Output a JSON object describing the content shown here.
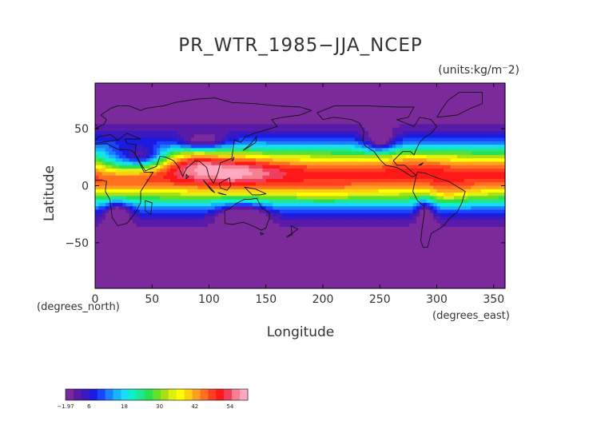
{
  "title": "PR_WTR_1985−JJA_NCEP",
  "units": "(units:kg/m⁻2)",
  "axes": {
    "xlabel": "Longitude",
    "ylabel": "Latitude",
    "x_note": "(degrees_east)",
    "y_note": "(degrees_north)",
    "xticks": [
      "0",
      "50",
      "100",
      "150",
      "200",
      "250",
      "300",
      "350"
    ],
    "yticks": [
      "50",
      "0",
      "−50"
    ]
  },
  "colorbar": {
    "labels": [
      "−1.97",
      "6",
      "18",
      "30",
      "42",
      "54"
    ],
    "colors": [
      "#7a2a9a",
      "#5a1aa8",
      "#3a1ac0",
      "#1a1ae0",
      "#1a44ff",
      "#1a80ff",
      "#18b4ff",
      "#18ddf8",
      "#10f0c8",
      "#20e890",
      "#28e050",
      "#60e028",
      "#a8e018",
      "#e0f010",
      "#ffff00",
      "#ffd010",
      "#ffa020",
      "#ff7020",
      "#ff4020",
      "#ff1818",
      "#f04060",
      "#f88090",
      "#ffa8c0"
    ]
  },
  "chart_data": {
    "type": "heatmap",
    "title": "PR_WTR_1985−JJA_NCEP",
    "xlabel": "Longitude",
    "ylabel": "Latitude",
    "xlim": [
      0,
      360
    ],
    "ylim": [
      -90,
      90
    ],
    "value_range": [
      -1.97,
      60
    ],
    "colormap_ticks": [
      -1.97,
      6,
      18,
      30,
      42,
      54
    ]
  }
}
